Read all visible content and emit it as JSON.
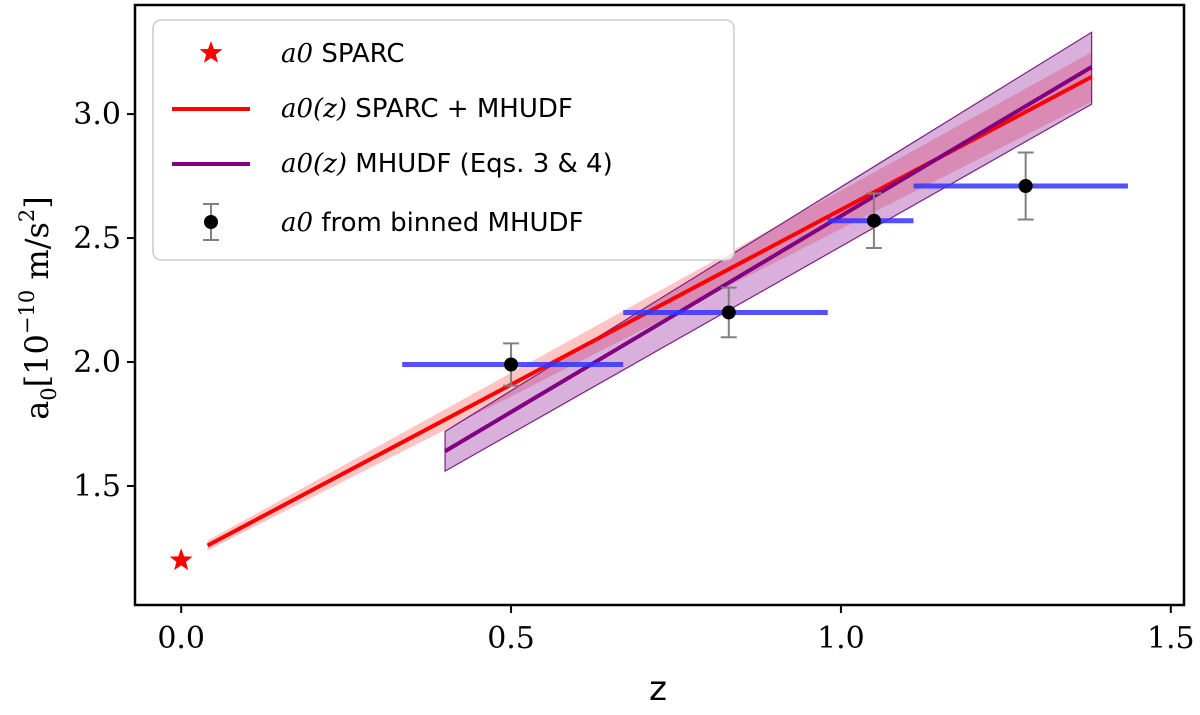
{
  "chart_data": {
    "type": "scatter",
    "xlabel": "z",
    "ylabel": "a0[10^-10 m/s^2]",
    "xlim": [
      -0.07,
      1.52
    ],
    "ylim": [
      1.02,
      3.44
    ],
    "x_ticks": [
      0.0,
      0.5,
      1.0,
      1.5
    ],
    "x_tick_labels": [
      "0.0",
      "0.5",
      "1.0",
      "1.5"
    ],
    "y_ticks": [
      1.5,
      2.0,
      2.5,
      3.0
    ],
    "y_tick_labels": [
      "1.5",
      "2.0",
      "2.5",
      "3.0"
    ],
    "grid": false,
    "legend_position": "top-left",
    "series": [
      {
        "name": "a0 SPARC",
        "kind": "marker-star",
        "color": "#ff0000",
        "points": [
          {
            "x": 0.0,
            "y": 1.2
          }
        ]
      },
      {
        "name": "a0(z) SPARC + MHUDF",
        "kind": "line-with-band",
        "color": "#ff0000",
        "x": [
          0.04,
          1.38
        ],
        "y": [
          1.26,
          3.15
        ],
        "band_low": [
          1.24,
          3.05
        ],
        "band_high": [
          1.28,
          3.25
        ]
      },
      {
        "name": "a0(z) MHUDF (Eqs. 3 & 4)",
        "kind": "line-with-band",
        "color": "#800080",
        "x": [
          0.4,
          1.38
        ],
        "y": [
          1.64,
          3.19
        ],
        "band_low": [
          1.56,
          3.04
        ],
        "band_high": [
          1.72,
          3.33
        ]
      },
      {
        "name": "a0 from binned MHUDF",
        "kind": "errorbar",
        "color": "#000000",
        "xerr_color": "#3333ff",
        "points": [
          {
            "x": 0.5,
            "y": 1.99,
            "x_low": 0.335,
            "x_high": 0.67,
            "y_err": 0.085
          },
          {
            "x": 0.83,
            "y": 2.2,
            "x_low": 0.67,
            "x_high": 0.98,
            "y_err": 0.1
          },
          {
            "x": 1.05,
            "y": 2.57,
            "x_low": 0.98,
            "x_high": 1.11,
            "y_err": 0.11
          },
          {
            "x": 1.28,
            "y": 2.71,
            "x_low": 1.11,
            "x_high": 1.435,
            "y_err": 0.135
          }
        ]
      }
    ],
    "legend": [
      {
        "math": "a0",
        "text": "SPARC"
      },
      {
        "math": "a0(z)",
        "text": "SPARC + MHUDF"
      },
      {
        "math": "a0(z)",
        "text": "MHUDF (Eqs. 3 & 4)"
      },
      {
        "math": "a0",
        "text": "from binned MHUDF"
      }
    ]
  }
}
